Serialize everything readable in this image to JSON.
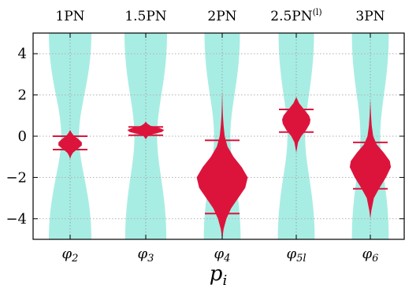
{
  "chart_data": {
    "type": "violin",
    "xlabel_base": "p",
    "xlabel_sub": "i",
    "ylim": [
      -5,
      5
    ],
    "yticks": [
      {
        "value": 4,
        "label": "4"
      },
      {
        "value": 2,
        "label": "2"
      },
      {
        "value": 0,
        "label": "0"
      },
      {
        "value": -2,
        "label": "−2"
      },
      {
        "value": -4,
        "label": "−4"
      }
    ],
    "grid": true,
    "band_color": "#a8ede3",
    "violin_color": "#dc143c",
    "line_color": "#dc143c",
    "categories": [
      {
        "symbol": "φ",
        "sub": "2",
        "top_label": "1PN",
        "top_sup": "",
        "interval": [
          -0.65,
          0.0
        ],
        "band_top": [
          0.0,
          0.6
        ],
        "band_mid": [
          -0.4,
          0.25
        ],
        "band_bot": [
          0.0,
          0.6
        ],
        "violin": [
          [
            -1.1,
            0
          ],
          [
            -0.95,
            0.03
          ],
          [
            -0.8,
            0.08
          ],
          [
            -0.6,
            0.22
          ],
          [
            -0.45,
            0.33
          ],
          [
            -0.3,
            0.33
          ],
          [
            -0.15,
            0.24
          ],
          [
            0.0,
            0.12
          ],
          [
            0.15,
            0.05
          ],
          [
            0.3,
            0
          ]
        ]
      },
      {
        "symbol": "φ",
        "sub": "3",
        "top_label": "1.5PN",
        "top_sup": "",
        "interval": [
          0.05,
          0.45
        ],
        "band_top": [
          0.0,
          0.6
        ],
        "band_mid": [
          0.3,
          0.32
        ],
        "band_bot": [
          0.0,
          0.58
        ],
        "violin": [
          [
            -0.15,
            0
          ],
          [
            0.0,
            0.06
          ],
          [
            0.1,
            0.2
          ],
          [
            0.2,
            0.45
          ],
          [
            0.3,
            0.52
          ],
          [
            0.4,
            0.38
          ],
          [
            0.5,
            0.14
          ],
          [
            0.6,
            0.05
          ],
          [
            0.7,
            0
          ]
        ]
      },
      {
        "symbol": "φ",
        "sub": "4",
        "top_label": "2PN",
        "top_sup": "",
        "interval": [
          -3.75,
          -0.2
        ],
        "band_top": [
          0.0,
          0.5
        ],
        "band_mid": [
          -2.0,
          0.23
        ],
        "band_bot": [
          0.0,
          0.52
        ],
        "violin": [
          [
            -5.0,
            0
          ],
          [
            -4.5,
            0.04
          ],
          [
            -4.0,
            0.12
          ],
          [
            -3.5,
            0.25
          ],
          [
            -3.0,
            0.45
          ],
          [
            -2.5,
            0.65
          ],
          [
            -2.0,
            0.72
          ],
          [
            -1.5,
            0.55
          ],
          [
            -1.0,
            0.32
          ],
          [
            -0.5,
            0.15
          ],
          [
            0.0,
            0.07
          ],
          [
            0.5,
            0.04
          ],
          [
            1.0,
            0.02
          ],
          [
            1.5,
            0.01
          ],
          [
            2.2,
            0
          ]
        ]
      },
      {
        "symbol": "φ",
        "sub": "5l",
        "top_label": "2.5PN",
        "top_sup": "(l)",
        "interval": [
          0.2,
          1.3
        ],
        "band_top": [
          0.0,
          0.5
        ],
        "band_mid": [
          0.8,
          0.25
        ],
        "band_bot": [
          0.0,
          0.52
        ],
        "violin": [
          [
            -0.8,
            0
          ],
          [
            -0.6,
            0.02
          ],
          [
            -0.3,
            0.05
          ],
          [
            0.0,
            0.14
          ],
          [
            0.3,
            0.28
          ],
          [
            0.6,
            0.38
          ],
          [
            0.8,
            0.4
          ],
          [
            1.0,
            0.36
          ],
          [
            1.3,
            0.22
          ],
          [
            1.6,
            0.08
          ],
          [
            1.9,
            0
          ]
        ]
      },
      {
        "symbol": "φ",
        "sub": "6",
        "top_label": "3PN",
        "top_sup": "",
        "interval": [
          -2.55,
          -0.3
        ],
        "band_top": [
          0.0,
          0.52
        ],
        "band_mid": [
          -1.4,
          0.28
        ],
        "band_bot": [
          0.0,
          0.52
        ],
        "violin": [
          [
            -4.0,
            0
          ],
          [
            -3.6,
            0.03
          ],
          [
            -3.0,
            0.1
          ],
          [
            -2.5,
            0.26
          ],
          [
            -2.0,
            0.44
          ],
          [
            -1.5,
            0.58
          ],
          [
            -1.2,
            0.55
          ],
          [
            -0.8,
            0.38
          ],
          [
            -0.4,
            0.18
          ],
          [
            0.0,
            0.08
          ],
          [
            0.5,
            0.04
          ],
          [
            1.0,
            0.02
          ],
          [
            1.8,
            0
          ]
        ]
      }
    ]
  }
}
